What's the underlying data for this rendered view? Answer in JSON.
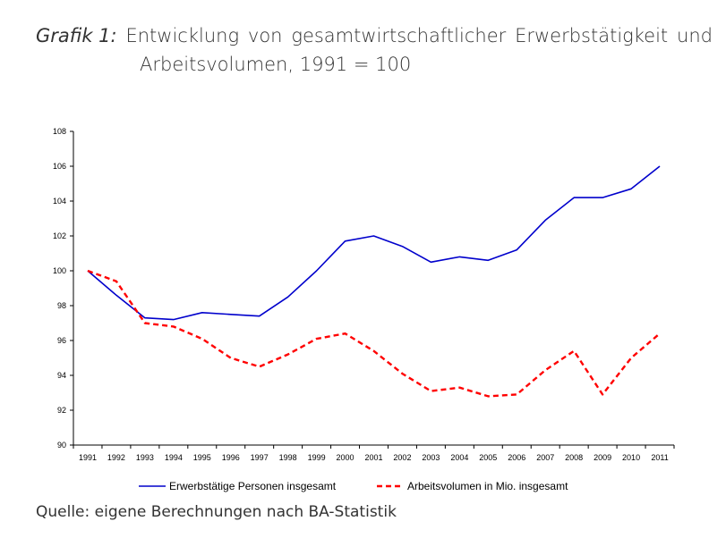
{
  "caption": {
    "prefix": "Grafik 1:",
    "words": [
      "Entwicklung",
      "von",
      "gesamtwirtschaftlicher",
      "Erwerbstätigkeit",
      "und"
    ],
    "line2": "Arbeitsvolumen, 1991 = 100"
  },
  "source": "Quelle: eigene Berechnungen nach BA-Statistik",
  "chart_data": {
    "type": "line",
    "title": "",
    "xlabel": "",
    "ylabel": "",
    "x": [
      "1991",
      "1992",
      "1993",
      "1994",
      "1995",
      "1996",
      "1997",
      "1998",
      "1999",
      "2000",
      "2001",
      "2002",
      "2003",
      "2004",
      "2005",
      "2006",
      "2007",
      "2008",
      "2009",
      "2010",
      "2011"
    ],
    "ylim": [
      90,
      108
    ],
    "yticks": [
      90,
      92,
      94,
      96,
      98,
      100,
      102,
      104,
      106,
      108
    ],
    "grid": false,
    "legend_position": "bottom",
    "series": [
      {
        "name": "Erwerbstätige Personen insgesamt",
        "color": "#0000cc",
        "style": "solid",
        "values": [
          100.0,
          98.6,
          97.3,
          97.2,
          97.6,
          97.5,
          97.4,
          98.5,
          100.0,
          101.7,
          102.0,
          101.4,
          100.5,
          100.8,
          100.6,
          101.2,
          102.9,
          104.2,
          104.2,
          104.7,
          106.0
        ]
      },
      {
        "name": "Arbeitsvolumen in Mio. insgesamt",
        "color": "#ff0000",
        "style": "dashed",
        "values": [
          100.0,
          99.4,
          97.0,
          96.8,
          96.1,
          95.0,
          94.5,
          95.2,
          96.1,
          96.4,
          95.4,
          94.1,
          93.1,
          93.3,
          92.8,
          92.9,
          94.3,
          95.4,
          92.9,
          95.0,
          96.4
        ]
      }
    ]
  }
}
